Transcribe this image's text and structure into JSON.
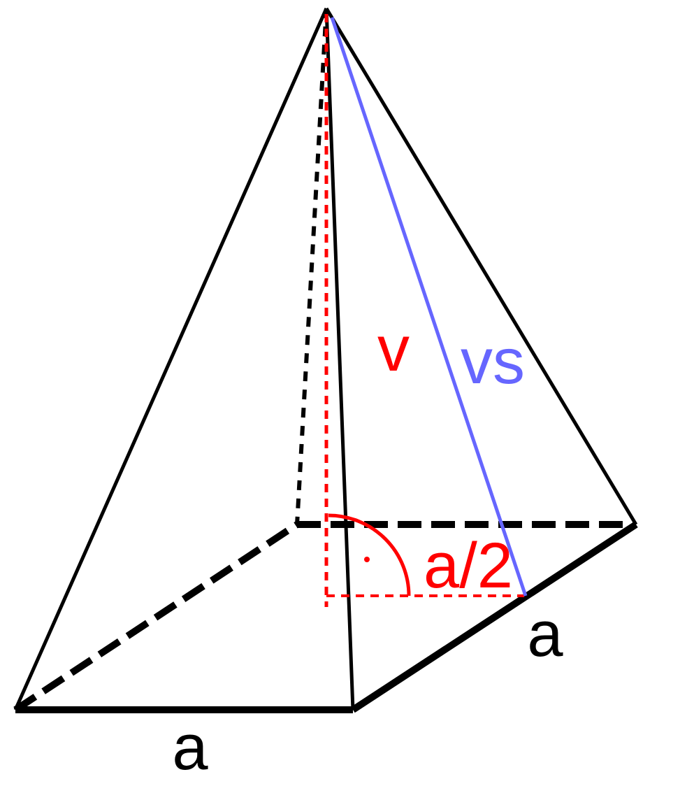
{
  "labels": {
    "height": "v",
    "slant_height": "vs",
    "half_side": "a/2",
    "side_right": "a",
    "side_front": "a"
  }
}
